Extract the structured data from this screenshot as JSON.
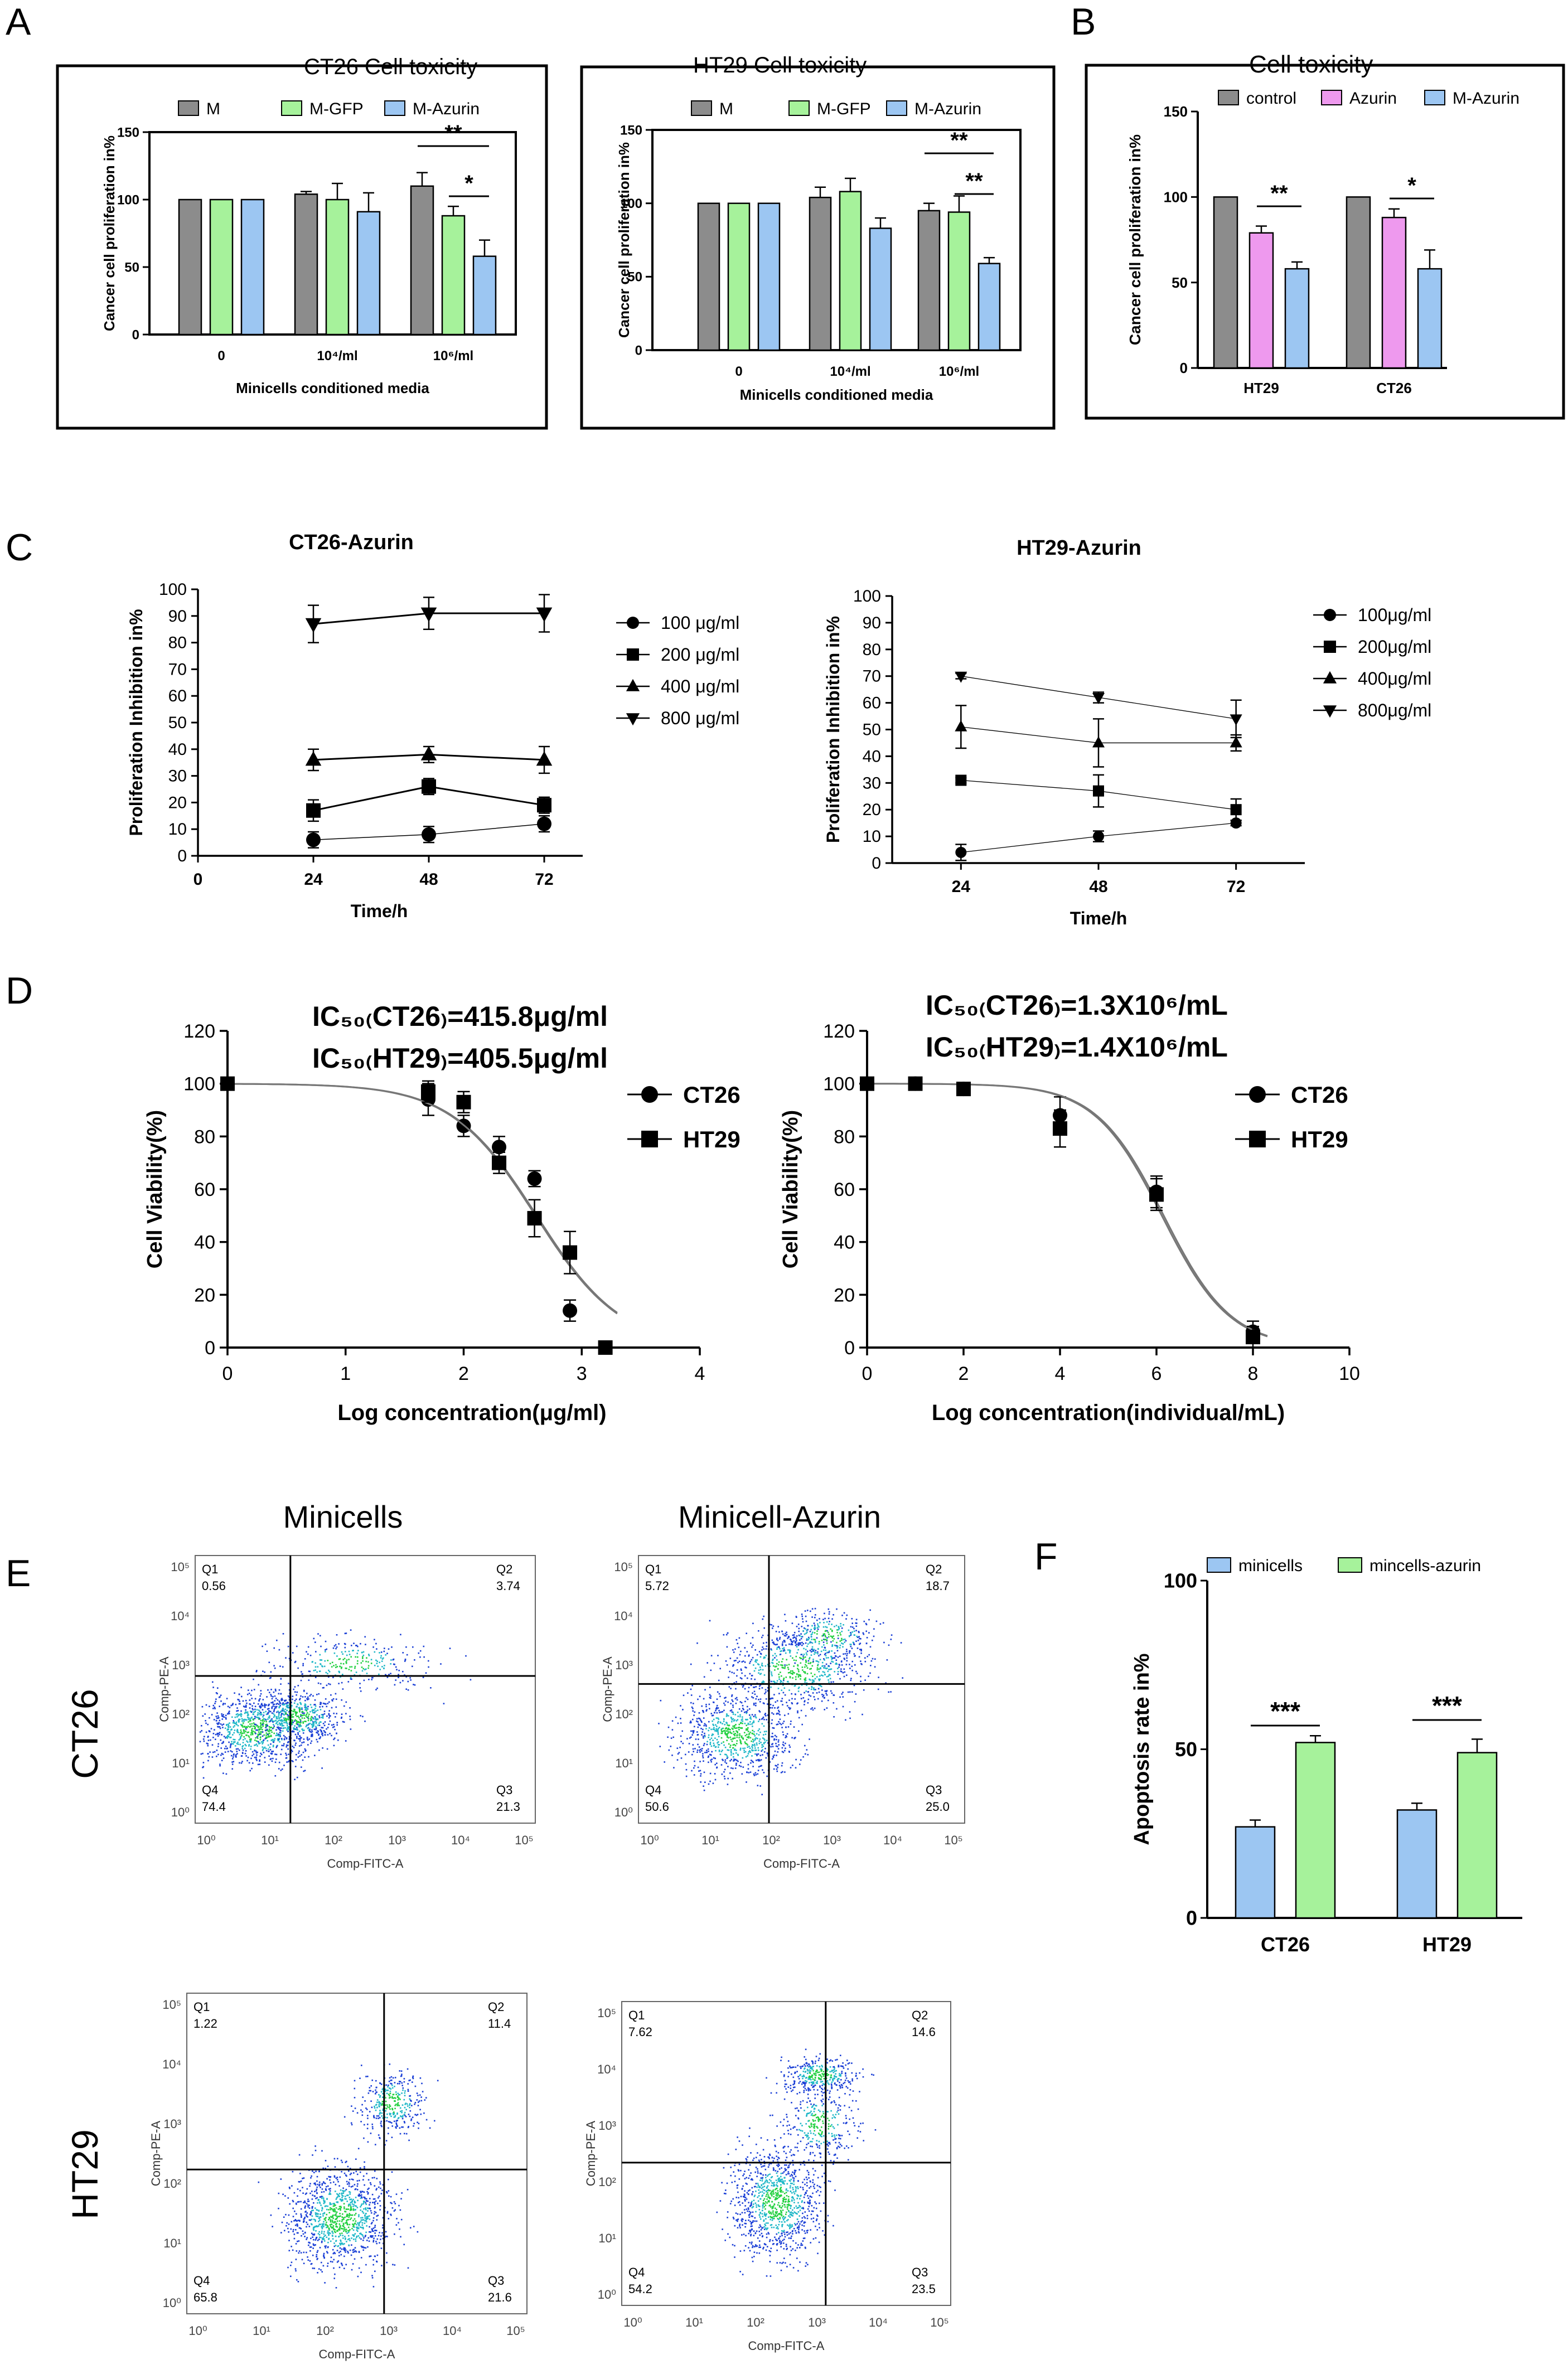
{
  "panel_letters": {
    "A": "A",
    "B": "B",
    "C": "C",
    "D": "D",
    "E": "E",
    "F": "F"
  },
  "chart_data": [
    {
      "id": "A1",
      "type": "bar",
      "title": "CT26 Cell toxicity",
      "xlabel": "Minicells conditioned media",
      "ylabel": "Cancer cell proliferation in%",
      "categories": [
        "0",
        "10⁴/ml",
        "10⁶/ml"
      ],
      "series": [
        {
          "name": "M",
          "color": "#8c8c8c",
          "values": [
            100,
            104,
            110
          ],
          "errors": [
            0,
            2,
            10
          ]
        },
        {
          "name": "M-GFP",
          "color": "#a6f29b",
          "values": [
            100,
            100,
            88
          ],
          "errors": [
            0,
            12,
            7
          ]
        },
        {
          "name": "M-Azurin",
          "color": "#9cc6f2",
          "values": [
            100,
            91,
            58
          ],
          "errors": [
            0,
            14,
            12
          ]
        }
      ],
      "ylim": [
        0,
        150
      ],
      "yticks": [
        "0",
        "50",
        "100",
        "150"
      ],
      "significance": [
        {
          "label": "**",
          "from_series": 0,
          "to_series": 2,
          "category": 2
        },
        {
          "label": "*",
          "from_series": 1,
          "to_series": 2,
          "category": 2
        }
      ]
    },
    {
      "id": "A2",
      "type": "bar",
      "title": "HT29 Cell toxicity",
      "xlabel": "Minicells conditioned media",
      "ylabel": "Cancer cell proliferation in%",
      "categories": [
        "0",
        "10⁴/ml",
        "10⁶/ml"
      ],
      "series": [
        {
          "name": "M",
          "color": "#8c8c8c",
          "values": [
            100,
            104,
            95
          ],
          "errors": [
            0,
            7,
            5
          ]
        },
        {
          "name": "M-GFP",
          "color": "#a6f29b",
          "values": [
            100,
            108,
            94
          ],
          "errors": [
            0,
            9,
            11
          ]
        },
        {
          "name": "M-Azurin",
          "color": "#9cc6f2",
          "values": [
            100,
            83,
            59
          ],
          "errors": [
            0,
            7,
            4
          ]
        }
      ],
      "ylim": [
        0,
        150
      ],
      "yticks": [
        "0",
        "50",
        "100",
        "150"
      ],
      "significance": [
        {
          "label": "**",
          "from_series": 0,
          "to_series": 2,
          "category": 2
        },
        {
          "label": "**",
          "from_series": 1,
          "to_series": 2,
          "category": 2
        }
      ]
    },
    {
      "id": "B",
      "type": "bar",
      "title": "Cell toxicity",
      "xlabel": "",
      "ylabel": "Cancer cell proliferation in%",
      "categories": [
        "HT29",
        "CT26"
      ],
      "series": [
        {
          "name": "control",
          "color": "#8c8c8c",
          "values": [
            100,
            100
          ],
          "errors": [
            0,
            0
          ]
        },
        {
          "name": "Azurin",
          "color": "#ee99ee",
          "values": [
            79,
            88
          ],
          "errors": [
            4,
            5
          ]
        },
        {
          "name": "M-Azurin",
          "color": "#9cc6f2",
          "values": [
            58,
            58
          ],
          "errors": [
            4,
            11
          ]
        }
      ],
      "ylim": [
        0,
        150
      ],
      "yticks": [
        "0",
        "50",
        "100",
        "150"
      ],
      "significance": [
        {
          "label": "**",
          "from_series": 1,
          "to_series": 2,
          "category": 0
        },
        {
          "label": "*",
          "from_series": 1,
          "to_series": 2,
          "category": 1
        }
      ]
    },
    {
      "id": "C1",
      "type": "line",
      "title": "CT26-Azurin",
      "xlabel": "Time/h",
      "ylabel": "Proliferation Inhibition in%",
      "x": [
        24,
        48,
        72
      ],
      "xlim": [
        0,
        80
      ],
      "xticks": [
        0,
        24,
        48,
        72
      ],
      "ylim": [
        0,
        100
      ],
      "yticks": [
        0,
        10,
        20,
        30,
        40,
        50,
        60,
        70,
        80,
        90,
        100
      ],
      "series": [
        {
          "name": "100  μg/ml",
          "marker": "circle",
          "values": [
            6,
            8,
            12
          ],
          "errors": [
            3,
            3,
            3
          ],
          "stroke": 1.5
        },
        {
          "name": "200  μg/ml",
          "marker": "square",
          "values": [
            17,
            26,
            19
          ],
          "errors": [
            4,
            3,
            3
          ],
          "stroke": 3
        },
        {
          "name": "400  μg/ml",
          "marker": "triangle",
          "values": [
            36,
            38,
            36
          ],
          "errors": [
            4,
            3,
            5
          ],
          "stroke": 3
        },
        {
          "name": "800  μg/ml",
          "marker": "triangle-down",
          "values": [
            87,
            91,
            91
          ],
          "errors": [
            7,
            6,
            7
          ],
          "stroke": 3
        }
      ]
    },
    {
      "id": "C2",
      "type": "line",
      "title": "HT29-Azurin",
      "xlabel": "Time/h",
      "ylabel": "Proliferation Inhibition in%",
      "x": [
        24,
        48,
        72
      ],
      "xlim": [
        12,
        84
      ],
      "xticks": [
        24,
        48,
        72
      ],
      "ylim": [
        0,
        100
      ],
      "yticks": [
        0,
        10,
        20,
        30,
        40,
        50,
        60,
        70,
        80,
        90,
        100
      ],
      "series": [
        {
          "name": "100μg/ml",
          "marker": "circle",
          "values": [
            4,
            10,
            15
          ],
          "errors": [
            3,
            2,
            1
          ],
          "stroke": 1.3
        },
        {
          "name": "200μg/ml",
          "marker": "square",
          "values": [
            31,
            27,
            20
          ],
          "errors": [
            1,
            6,
            4
          ],
          "stroke": 1.3
        },
        {
          "name": "400μg/ml",
          "marker": "triangle",
          "values": [
            51,
            45,
            45
          ],
          "errors": [
            8,
            9,
            3
          ],
          "stroke": 1.3
        },
        {
          "name": "800μg/ml",
          "marker": "triangle-down",
          "values": [
            70,
            62,
            54
          ],
          "errors": [
            1,
            2,
            7
          ],
          "stroke": 1.3
        }
      ]
    },
    {
      "id": "D1",
      "type": "scatter",
      "annotation_lines": [
        "IC₅₀₍CT26₎=415.8μg/ml",
        "IC₅₀₍HT29₎=405.5μg/ml"
      ],
      "xlabel": "Log concentration(μg/ml)",
      "ylabel": "Cell Viability(%)",
      "xlim": [
        0,
        4
      ],
      "xticks": [
        0,
        1,
        2,
        3,
        4
      ],
      "ylim": [
        0,
        120
      ],
      "yticks": [
        0,
        20,
        40,
        60,
        80,
        100,
        120
      ],
      "series": [
        {
          "name": "CT26",
          "marker": "circle",
          "ic50_log": 2.619,
          "x": [
            0,
            1.7,
            2.0,
            2.3,
            2.6,
            2.9
          ],
          "values": [
            100,
            94,
            84,
            76,
            64,
            14
          ],
          "errors": [
            2,
            6,
            4,
            4,
            3,
            4
          ]
        },
        {
          "name": "HT29",
          "marker": "square",
          "ic50_log": 2.608,
          "x": [
            0,
            1.7,
            2.0,
            2.3,
            2.6,
            2.9,
            3.2
          ],
          "values": [
            100,
            97,
            93,
            70,
            49,
            36,
            0
          ],
          "errors": [
            2,
            4,
            4,
            4,
            7,
            8,
            1
          ]
        }
      ]
    },
    {
      "id": "D2",
      "type": "scatter",
      "annotation_lines": [
        "IC₅₀₍CT26₎=1.3X10⁶/mL",
        "IC₅₀₍HT29₎=1.4X10⁶/mL"
      ],
      "xlabel": "Log concentration(individual/mL)",
      "ylabel": "Cell Viability(%)",
      "xlim": [
        0,
        10
      ],
      "xticks": [
        0,
        2,
        4,
        6,
        8,
        10
      ],
      "ylim": [
        0,
        120
      ],
      "yticks": [
        0,
        20,
        40,
        60,
        80,
        100,
        120
      ],
      "series": [
        {
          "name": "CT26",
          "marker": "circle",
          "ic50_log": 6.11,
          "x": [
            0,
            1,
            2,
            4,
            6,
            8
          ],
          "values": [
            100,
            100,
            98,
            88,
            59,
            6
          ],
          "errors": [
            1,
            1,
            2,
            7,
            6,
            4
          ]
        },
        {
          "name": "HT29",
          "marker": "square",
          "ic50_log": 6.15,
          "x": [
            0,
            1,
            2,
            4,
            6,
            8
          ],
          "values": [
            100,
            100,
            98,
            83,
            58,
            4
          ],
          "errors": [
            1,
            1,
            2,
            7,
            6,
            4
          ]
        }
      ]
    },
    {
      "id": "F",
      "type": "bar",
      "title": "",
      "xlabel": "",
      "ylabel": "Apoptosis rate in%",
      "categories": [
        "CT26",
        "HT29"
      ],
      "series": [
        {
          "name": "minicells",
          "color": "#9cc6f2",
          "values": [
            27,
            32
          ],
          "errors": [
            2,
            2
          ]
        },
        {
          "name": "mincells-azurin",
          "color": "#a6f29b",
          "values": [
            52,
            49
          ],
          "errors": [
            2,
            4
          ]
        }
      ],
      "ylim": [
        0,
        100
      ],
      "yticks": [
        "0",
        "50",
        "100"
      ],
      "significance": [
        {
          "label": "***",
          "from_series": 0,
          "to_series": 1,
          "category": 0
        },
        {
          "label": "***",
          "from_series": 0,
          "to_series": 1,
          "category": 1
        }
      ]
    }
  ],
  "flow": {
    "col_titles": [
      "Minicells",
      "Minicell-Azurin"
    ],
    "row_labels": [
      "CT26",
      "HT29"
    ],
    "x_axis_label": "Comp-FITC-A",
    "y_axis_label": "Comp-PE-A",
    "log_ticks": [
      "10⁰",
      "10¹",
      "10²",
      "10³",
      "10⁴",
      "10⁵"
    ],
    "quadrant_names": [
      "Q1",
      "Q2",
      "Q3",
      "Q4"
    ],
    "plots": [
      {
        "id": "ct26-minicells",
        "q1": "0.56",
        "q2": "3.74",
        "q3": "21.3",
        "q4": "74.4",
        "gate_x": 0.28,
        "gate_y": 0.55
      },
      {
        "id": "ct26-azurin",
        "q1": "5.72",
        "q2": "18.7",
        "q3": "25.0",
        "q4": "50.6",
        "gate_x": 0.4,
        "gate_y": 0.52
      },
      {
        "id": "ht29-minicells",
        "q1": "1.22",
        "q2": "11.4",
        "q3": "21.6",
        "q4": "65.8",
        "gate_x": 0.58,
        "gate_y": 0.45
      },
      {
        "id": "ht29-azurin",
        "q1": "7.62",
        "q2": "14.6",
        "q3": "23.5",
        "q4": "54.2",
        "gate_x": 0.62,
        "gate_y": 0.47
      }
    ]
  },
  "colors": {
    "axis": "#000000",
    "density_low": "#1a3fd6",
    "density_high": "#22d040"
  }
}
